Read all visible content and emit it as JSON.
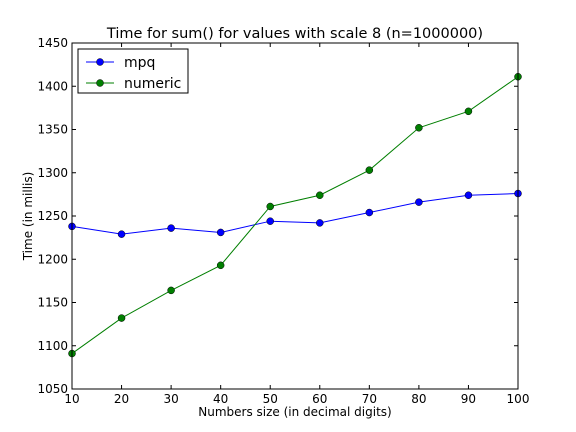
{
  "chart_data": {
    "type": "line",
    "title": "Time for sum() for values with scale 8 (n=1000000)",
    "xlabel": "Numbers size (in decimal digits)",
    "ylabel": "Time (in millis)",
    "xlim": [
      10,
      100
    ],
    "ylim": [
      1050,
      1450
    ],
    "xticks": [
      10,
      20,
      30,
      40,
      50,
      60,
      70,
      80,
      90,
      100
    ],
    "yticks": [
      1050,
      1100,
      1150,
      1200,
      1250,
      1300,
      1350,
      1400,
      1450
    ],
    "x": [
      10,
      20,
      30,
      40,
      50,
      60,
      70,
      80,
      90,
      100
    ],
    "grid": false,
    "legend_position": "upper-left",
    "series": [
      {
        "name": "mpq",
        "color": "#0000ff",
        "values": [
          1238,
          1229,
          1236,
          1231,
          1244,
          1242,
          1254,
          1266,
          1274,
          1276
        ]
      },
      {
        "name": "numeric",
        "color": "#007f00",
        "values": [
          1091,
          1132,
          1164,
          1193,
          1261,
          1274,
          1303,
          1352,
          1371,
          1411
        ]
      }
    ]
  }
}
